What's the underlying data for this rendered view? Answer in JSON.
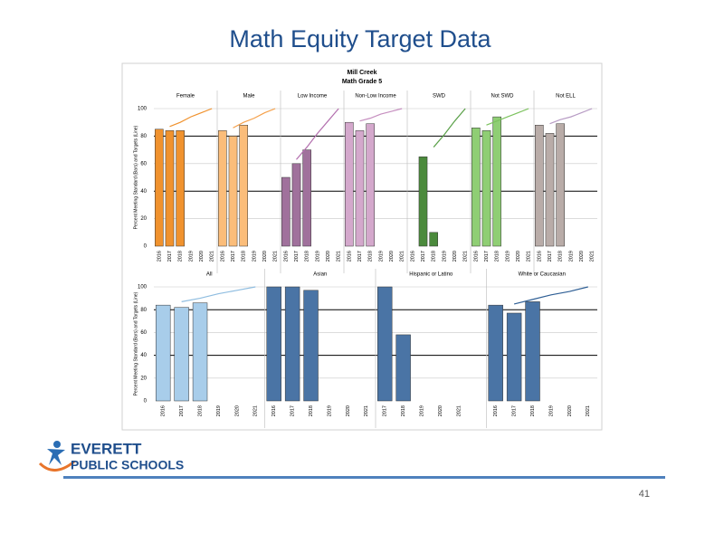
{
  "slide": {
    "title": "Math Equity Target Data",
    "logo_top": "EVERETT",
    "logo_bottom": "PUBLIC SCHOOLS",
    "page_number": "41"
  },
  "chart_data": [
    {
      "type": "grouped_bar",
      "title": "Mill Creek",
      "subtitle": "Math Grade 5",
      "ylabel": "Percent Meeting Standard (Bars) and Targets (Line)",
      "ylim": [
        0,
        100
      ],
      "yticks": [
        0,
        20,
        40,
        60,
        80,
        100
      ],
      "grid": true,
      "groups": [
        {
          "name": "Female",
          "color": "#f0922e",
          "target_color": "#f0922e",
          "categories": [
            "2016",
            "2017",
            "2018",
            "2019",
            "2020",
            "2021"
          ],
          "values": [
            85,
            84,
            84,
            null,
            null,
            null
          ],
          "targets": [
            null,
            87,
            90,
            94,
            97,
            100
          ]
        },
        {
          "name": "Male",
          "color": "#fbbd7a",
          "target_color": "#f5a04a",
          "categories": [
            "2016",
            "2017",
            "2018",
            "2019",
            "2020",
            "2021"
          ],
          "values": [
            84,
            80,
            88,
            null,
            null,
            null
          ],
          "targets": [
            null,
            86,
            90,
            93,
            97,
            100
          ]
        },
        {
          "name": "Low Income",
          "color": "#a0719c",
          "target_color": "#b36fae",
          "categories": [
            "2016",
            "2017",
            "2018",
            "2019",
            "2020",
            "2021"
          ],
          "values": [
            50,
            60,
            70,
            null,
            null,
            null
          ],
          "targets": [
            null,
            63,
            72,
            82,
            91,
            100
          ]
        },
        {
          "name": "Non-Low Income",
          "color": "#d4a8cc",
          "target_color": "#c68fc0",
          "categories": [
            "2016",
            "2017",
            "2018",
            "2019",
            "2020",
            "2021"
          ],
          "values": [
            90,
            84,
            89,
            null,
            null,
            null
          ],
          "targets": [
            null,
            91,
            93,
            96,
            98,
            100
          ]
        },
        {
          "name": "SWD",
          "color": "#4b8a3c",
          "target_color": "#5aa048",
          "categories": [
            "2016",
            "2017",
            "2018",
            "2019",
            "2020",
            "2021"
          ],
          "values": [
            null,
            65,
            10,
            null,
            null,
            null
          ],
          "targets": [
            null,
            null,
            72,
            81,
            91,
            100
          ]
        },
        {
          "name": "Not SWD",
          "color": "#8fce74",
          "target_color": "#7cc25e",
          "categories": [
            "2016",
            "2017",
            "2018",
            "2019",
            "2020",
            "2021"
          ],
          "values": [
            86,
            84,
            94,
            null,
            null,
            null
          ],
          "targets": [
            null,
            88,
            91,
            94,
            97,
            100
          ]
        },
        {
          "name": "Not ELL",
          "color": "#b9aca8",
          "target_color": "#b79bc4",
          "categories": [
            "2016",
            "2017",
            "2018",
            "2019",
            "2020",
            "2021"
          ],
          "values": [
            88,
            82,
            89,
            null,
            null,
            null
          ],
          "targets": [
            null,
            89,
            92,
            94,
            97,
            100
          ]
        }
      ]
    },
    {
      "type": "grouped_bar",
      "ylabel": "Percent Meeting Standard (Bars) and Targets (Line)",
      "ylim": [
        0,
        100
      ],
      "yticks": [
        0,
        20,
        40,
        60,
        80,
        100
      ],
      "grid": true,
      "groups": [
        {
          "name": "All",
          "color": "#a8cdea",
          "target_color": "#8fbde0",
          "categories": [
            "2016",
            "2017",
            "2018",
            "2019",
            "2020",
            "2021"
          ],
          "values": [
            84,
            82,
            86,
            null,
            null,
            null
          ],
          "targets": [
            null,
            87,
            90,
            94,
            97,
            100
          ]
        },
        {
          "name": "Asian",
          "color": "#4a74a5",
          "target_color": "#2f5f95",
          "categories": [
            "2016",
            "2017",
            "2018",
            "2019",
            "2020",
            "2021"
          ],
          "values": [
            100,
            100,
            97,
            null,
            null,
            null
          ],
          "targets": [
            null,
            null,
            null,
            null,
            null,
            null
          ]
        },
        {
          "name": "Hispanic or Latino",
          "color": "#4a74a5",
          "target_color": "#2f5f95",
          "categories": [
            "2017",
            "2018",
            "2019",
            "2020",
            "2021"
          ],
          "values": [
            100,
            58,
            null,
            null,
            null
          ],
          "targets": [
            null,
            null,
            null,
            null,
            null
          ]
        },
        {
          "name": "White or Caucasian",
          "color": "#4a74a5",
          "target_color": "#2f5f95",
          "categories": [
            "2016",
            "2017",
            "2018",
            "2019",
            "2020",
            "2021"
          ],
          "values": [
            84,
            77,
            87,
            null,
            null,
            null
          ],
          "targets": [
            null,
            85,
            89,
            93,
            96,
            100
          ]
        }
      ]
    }
  ]
}
